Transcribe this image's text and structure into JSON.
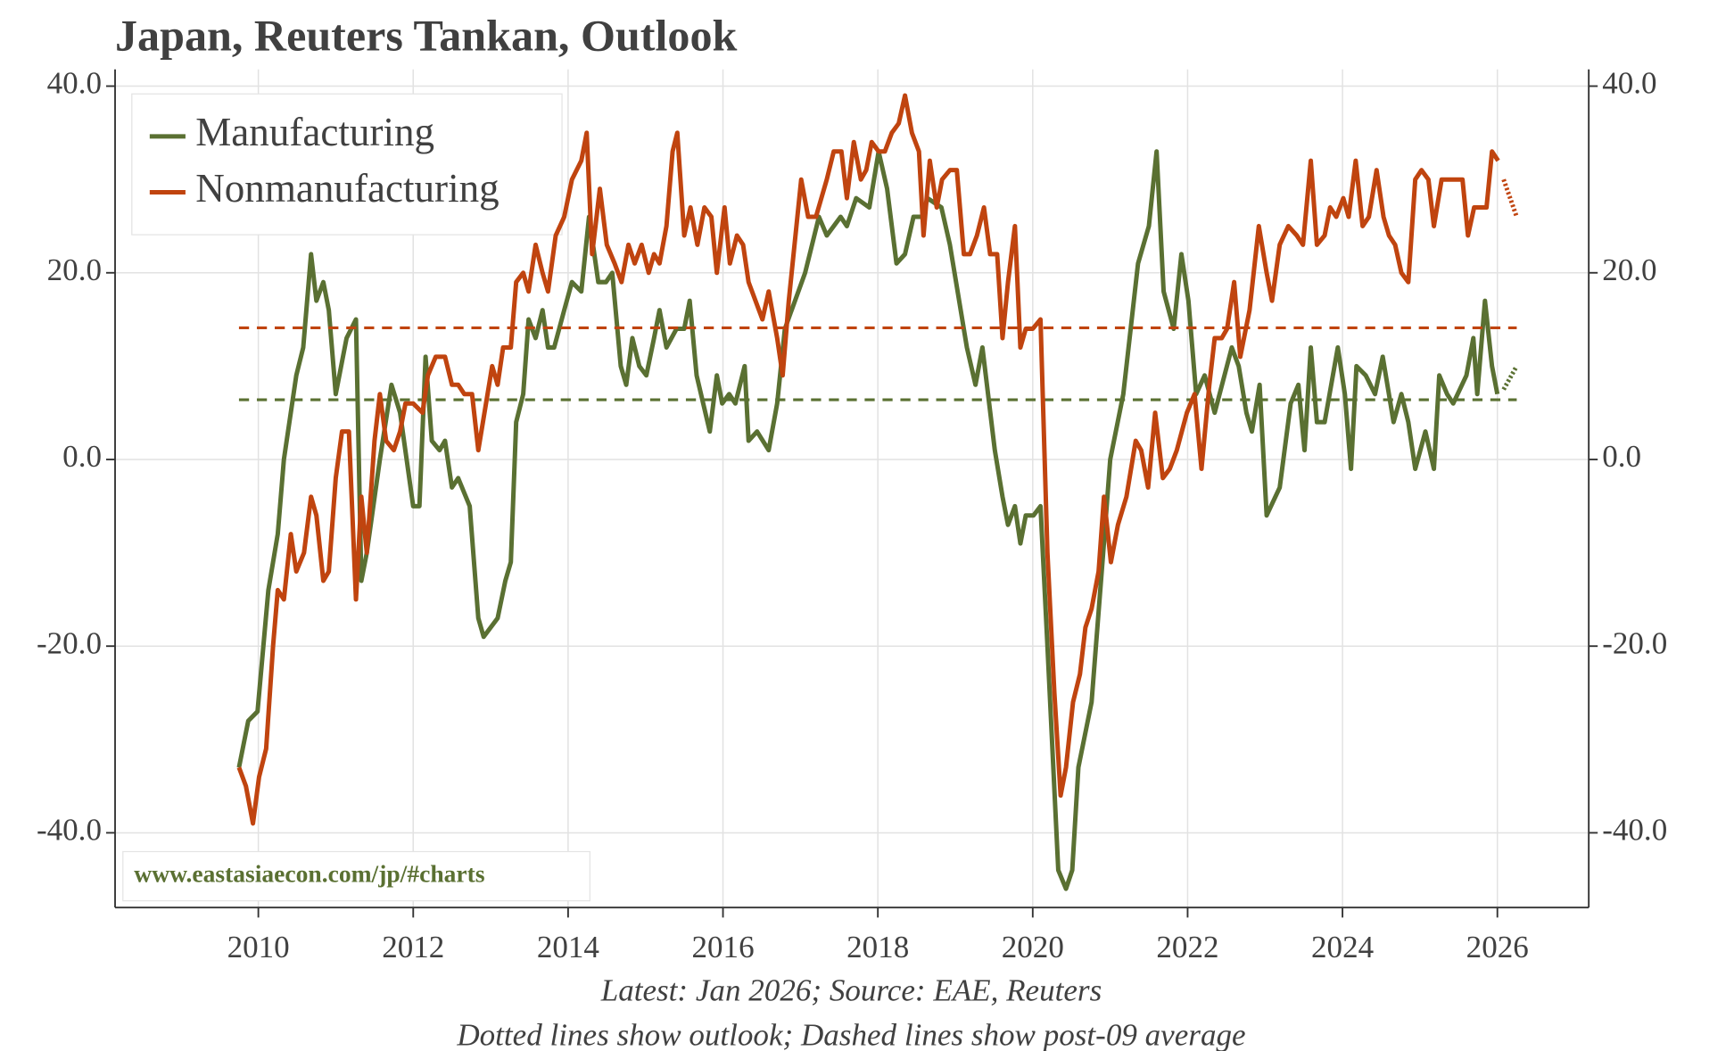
{
  "chart_data": {
    "type": "line",
    "title": "Japan, Reuters Tankan, Outlook",
    "notes": [
      "Latest: Jan 2026; Source: EAE, Reuters",
      "Dotted lines show outlook; Dashed lines show post-09 average"
    ],
    "watermark": "www.eastasiaecon.com/jp/#charts",
    "xlim": [
      2008.15,
      2027.18
    ],
    "xticks": [
      2010,
      2012,
      2014,
      2016,
      2018,
      2020,
      2022,
      2024,
      2026
    ],
    "ylim": [
      -48,
      41.8
    ],
    "yticks": [
      {
        "value": -40,
        "label": "-40.0"
      },
      {
        "value": -20,
        "label": "-20.0"
      },
      {
        "value": 0,
        "label": "0.0"
      },
      {
        "value": 20,
        "label": "20.0"
      },
      {
        "value": 40,
        "label": "40.0"
      }
    ],
    "grid": true,
    "legend": "upper left",
    "series": [
      {
        "name": "Manufacturing",
        "color": "#5a7032",
        "average": 6.4,
        "outlook_x": [
          2026.08,
          2026.25
        ],
        "outlook_values": [
          7.5,
          10
        ],
        "x": [
          2009.75,
          2009.87,
          2009.99,
          2010.13,
          2010.25,
          2010.33,
          2010.49,
          2010.58,
          2010.68,
          2010.75,
          2010.84,
          2010.91,
          2011.0,
          2011.14,
          2011.26,
          2011.33,
          2011.4,
          2011.57,
          2011.72,
          2011.83,
          2012.0,
          2012.08,
          2012.16,
          2012.24,
          2012.34,
          2012.41,
          2012.5,
          2012.58,
          2012.73,
          2012.84,
          2012.91,
          2013.09,
          2013.19,
          2013.26,
          2013.33,
          2013.42,
          2013.49,
          2013.58,
          2013.67,
          2013.74,
          2013.82,
          2013.95,
          2014.05,
          2014.17,
          2014.27,
          2014.39,
          2014.49,
          2014.57,
          2014.68,
          2014.75,
          2014.83,
          2014.92,
          2015.01,
          2015.11,
          2015.18,
          2015.27,
          2015.4,
          2015.5,
          2015.57,
          2015.66,
          2015.83,
          2015.92,
          2015.99,
          2016.08,
          2016.16,
          2016.28,
          2016.33,
          2016.44,
          2016.59,
          2016.7,
          2016.8,
          2017.06,
          2017.24,
          2017.34,
          2017.52,
          2017.6,
          2017.72,
          2017.89,
          2018.01,
          2018.12,
          2018.24,
          2018.35,
          2018.46,
          2018.57,
          2018.64,
          2018.82,
          2018.93,
          2019.15,
          2019.26,
          2019.35,
          2019.51,
          2019.61,
          2019.68,
          2019.77,
          2019.84,
          2019.91,
          2020.01,
          2020.1,
          2020.19,
          2020.33,
          2020.43,
          2020.51,
          2020.59,
          2020.76,
          2020.91,
          2021.0,
          2021.17,
          2021.36,
          2021.5,
          2021.6,
          2021.69,
          2021.82,
          2021.92,
          2022.01,
          2022.11,
          2022.22,
          2022.35,
          2022.57,
          2022.66,
          2022.76,
          2022.83,
          2022.93,
          2023.02,
          2023.19,
          2023.33,
          2023.43,
          2023.51,
          2023.59,
          2023.67,
          2023.77,
          2023.94,
          2024.03,
          2024.11,
          2024.18,
          2024.3,
          2024.42,
          2024.52,
          2024.66,
          2024.76,
          2024.85,
          2024.94,
          2025.07,
          2025.18,
          2025.25,
          2025.35,
          2025.43,
          2025.6,
          2025.69,
          2025.74,
          2025.84,
          2025.93,
          2026.0
        ],
        "values": [
          -33,
          -28,
          -27,
          -14,
          -8,
          0,
          9,
          12,
          22,
          17,
          19,
          16,
          7,
          13,
          15,
          -13,
          -10,
          0,
          8,
          5,
          -5,
          -5,
          11,
          2,
          1,
          2,
          -3,
          -2,
          -5,
          -17,
          -19,
          -17,
          -13,
          -11,
          4,
          7,
          15,
          13,
          16,
          12,
          12,
          16,
          19,
          18,
          26,
          19,
          19,
          20,
          10,
          8,
          13,
          10,
          9,
          13,
          16,
          12,
          14,
          14,
          17,
          9,
          3,
          9,
          6,
          7,
          6,
          10,
          2,
          3,
          1,
          6,
          14,
          20,
          26,
          24,
          26,
          25,
          28,
          27,
          33,
          29,
          21,
          22,
          26,
          26,
          28,
          27,
          23,
          12,
          8,
          12,
          1,
          -4,
          -7,
          -5,
          -9,
          -6,
          -6,
          -5,
          -20,
          -44,
          -46,
          -44,
          -33,
          -26,
          -10,
          0,
          7,
          21,
          25,
          33,
          18,
          14,
          22,
          17,
          7,
          9,
          5,
          12,
          10,
          5,
          3,
          8,
          -6,
          -3,
          6,
          8,
          1,
          12,
          4,
          4,
          12,
          7,
          -1,
          10,
          9,
          7,
          11,
          4,
          7,
          4,
          -1,
          3,
          -1,
          9,
          7,
          6,
          9,
          13,
          7,
          17,
          10,
          7
        ]
      },
      {
        "name": "Nonmanufacturing",
        "color": "#c0440f",
        "average": 14.1,
        "outlook_x": [
          2026.08,
          2026.25
        ],
        "outlook_values": [
          30,
          26
        ],
        "x": [
          2009.75,
          2009.84,
          2009.93,
          2010.01,
          2010.1,
          2010.19,
          2010.25,
          2010.33,
          2010.42,
          2010.49,
          2010.59,
          2010.68,
          2010.75,
          2010.84,
          2010.91,
          2011.0,
          2011.08,
          2011.17,
          2011.26,
          2011.33,
          2011.4,
          2011.5,
          2011.57,
          2011.65,
          2011.75,
          2011.83,
          2011.9,
          2012.0,
          2012.12,
          2012.19,
          2012.29,
          2012.41,
          2012.5,
          2012.58,
          2012.66,
          2012.76,
          2012.84,
          2012.94,
          2013.02,
          2013.09,
          2013.16,
          2013.26,
          2013.33,
          2013.42,
          2013.49,
          2013.58,
          2013.67,
          2013.74,
          2013.84,
          2013.95,
          2014.05,
          2014.17,
          2014.24,
          2014.31,
          2014.41,
          2014.5,
          2014.6,
          2014.69,
          2014.78,
          2014.86,
          2014.95,
          2015.04,
          2015.11,
          2015.18,
          2015.27,
          2015.35,
          2015.41,
          2015.5,
          2015.58,
          2015.67,
          2015.76,
          2015.85,
          2015.92,
          2016.02,
          2016.09,
          2016.18,
          2016.26,
          2016.33,
          2016.42,
          2016.51,
          2016.59,
          2016.7,
          2016.77,
          2016.85,
          2017.01,
          2017.1,
          2017.2,
          2017.34,
          2017.43,
          2017.53,
          2017.6,
          2017.69,
          2017.78,
          2017.85,
          2017.92,
          2018.01,
          2018.09,
          2018.18,
          2018.27,
          2018.35,
          2018.44,
          2018.53,
          2018.59,
          2018.67,
          2018.76,
          2018.83,
          2018.93,
          2019.02,
          2019.11,
          2019.19,
          2019.28,
          2019.37,
          2019.45,
          2019.54,
          2019.61,
          2019.68,
          2019.77,
          2019.84,
          2019.91,
          2020.0,
          2020.1,
          2020.19,
          2020.28,
          2020.36,
          2020.43,
          2020.52,
          2020.61,
          2020.68,
          2020.76,
          2020.85,
          2020.92,
          2021.01,
          2021.1,
          2021.21,
          2021.33,
          2021.4,
          2021.49,
          2021.58,
          2021.68,
          2021.77,
          2021.86,
          2021.99,
          2022.09,
          2022.18,
          2022.28,
          2022.35,
          2022.44,
          2022.51,
          2022.6,
          2022.68,
          2022.8,
          2022.92,
          2023.02,
          2023.09,
          2023.19,
          2023.3,
          2023.41,
          2023.49,
          2023.59,
          2023.67,
          2023.77,
          2023.84,
          2023.92,
          2024.01,
          2024.08,
          2024.17,
          2024.26,
          2024.34,
          2024.44,
          2024.53,
          2024.6,
          2024.68,
          2024.76,
          2024.85,
          2024.94,
          2025.02,
          2025.11,
          2025.18,
          2025.28,
          2025.37,
          2025.47,
          2025.55,
          2025.62,
          2025.7,
          2025.79,
          2025.86,
          2025.93,
          2026.01
        ],
        "values": [
          -33,
          -35,
          -39,
          -34,
          -31,
          -20,
          -14,
          -15,
          -8,
          -12,
          -10,
          -4,
          -6,
          -13,
          -12,
          -2,
          3,
          3,
          -15,
          -4,
          -10,
          2,
          7,
          2,
          1,
          3,
          6,
          6,
          5,
          9,
          11,
          11,
          8,
          8,
          7,
          7,
          1,
          6,
          10,
          8,
          12,
          12,
          19,
          20,
          18,
          23,
          20,
          18,
          24,
          26,
          30,
          32,
          35,
          22,
          29,
          23,
          21,
          19,
          23,
          21,
          23,
          20,
          22,
          21,
          25,
          33,
          35,
          24,
          27,
          23,
          27,
          26,
          20,
          27,
          21,
          24,
          23,
          19,
          17,
          15,
          18,
          13,
          9,
          17,
          30,
          26,
          26,
          30,
          33,
          33,
          28,
          34,
          30,
          31,
          34,
          33,
          33,
          35,
          36,
          39,
          35,
          33,
          24,
          32,
          27,
          30,
          31,
          31,
          22,
          22,
          24,
          27,
          22,
          22,
          13,
          19,
          25,
          12,
          14,
          14,
          15,
          -10,
          -25,
          -36,
          -33,
          -26,
          -23,
          -18,
          -16,
          -12,
          -4,
          -11,
          -7,
          -4,
          2,
          1,
          -3,
          5,
          -2,
          -1,
          1,
          5,
          7,
          -1,
          8,
          13,
          13,
          14,
          19,
          11,
          16,
          25,
          20,
          17,
          23,
          25,
          24,
          23,
          32,
          23,
          24,
          27,
          26,
          28,
          26,
          32,
          25,
          26,
          31,
          26,
          24,
          23,
          20,
          19,
          30,
          31,
          30,
          25,
          30,
          30,
          30,
          30,
          24,
          27,
          27,
          27,
          33,
          32
        ]
      }
    ]
  }
}
